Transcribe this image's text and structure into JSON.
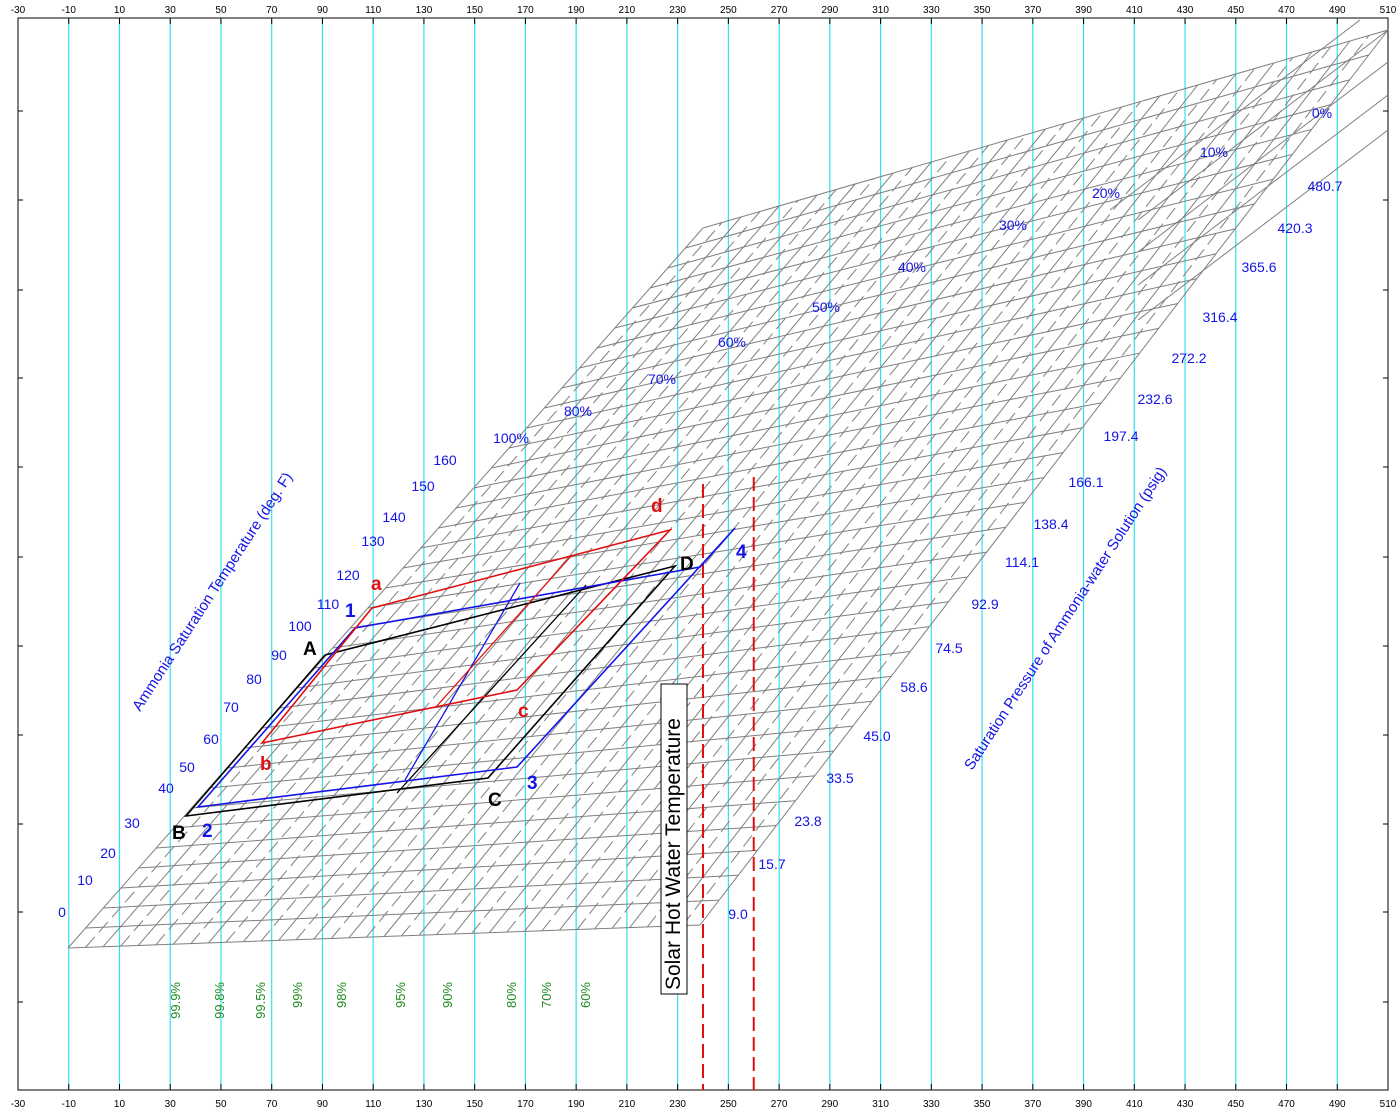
{
  "chart_data": {
    "type": "line",
    "title": "",
    "x_ticks": [
      -30,
      -10,
      10,
      30,
      50,
      70,
      90,
      110,
      130,
      150,
      170,
      190,
      210,
      230,
      250,
      270,
      290,
      310,
      330,
      350,
      370,
      390,
      410,
      430,
      450,
      470,
      490,
      510
    ],
    "xlim": [
      -30,
      510
    ],
    "y_axis_label": "Ammonia Saturation Temperature (deg. F)",
    "y_axis_ticks": [
      0,
      10,
      20,
      30,
      40,
      50,
      60,
      70,
      80,
      90,
      100,
      110,
      120,
      130,
      140,
      150,
      160
    ],
    "pressure_axis_label": "Saturation Pressure of Ammonia-water Solution (psig)",
    "pressure_ticks": [
      "9.0",
      "15.7",
      "23.8",
      "33.5",
      "45.0",
      "58.6",
      "74.5",
      "92.9",
      "114.1",
      "138.4",
      "166.1",
      "197.4",
      "232.6",
      "272.2",
      "316.4",
      "365.6",
      "420.3",
      "480.7"
    ],
    "concentration_top_labels": [
      "0%",
      "10%",
      "20%",
      "30%",
      "40%",
      "50%",
      "60%",
      "70%",
      "80%",
      "100%"
    ],
    "concentration_bottom_labels": [
      "99.9%",
      "99.8%",
      "99.5%",
      "99%",
      "98%",
      "95%",
      "90%",
      "80%",
      "70%",
      "60%"
    ],
    "vertical_marker_label": "Solar Hot Water Temperature",
    "vertical_markers_x": [
      240,
      260
    ],
    "series": [
      {
        "name": "",
        "color": "#000000",
        "points": [
          "A",
          "B",
          "C",
          "D"
        ]
      },
      {
        "name": "",
        "color": "#1414e6",
        "points": [
          "1",
          "2",
          "3",
          "4"
        ]
      },
      {
        "name": "",
        "color": "#e01010",
        "points": [
          "a",
          "b",
          "c",
          "d"
        ]
      }
    ],
    "point_labels": [
      "A",
      "B",
      "C",
      "D",
      "1",
      "2",
      "3",
      "4",
      "a",
      "b",
      "c",
      "d"
    ]
  },
  "colors": {
    "grid_cyan": "#33e0f0",
    "grid_gray": "#7f7f7f",
    "axis_blue": "#1414e6",
    "pct_green": "#228b22",
    "cycle_black": "#000000",
    "cycle_blue": "#1414e6",
    "cycle_red": "#e01010"
  }
}
